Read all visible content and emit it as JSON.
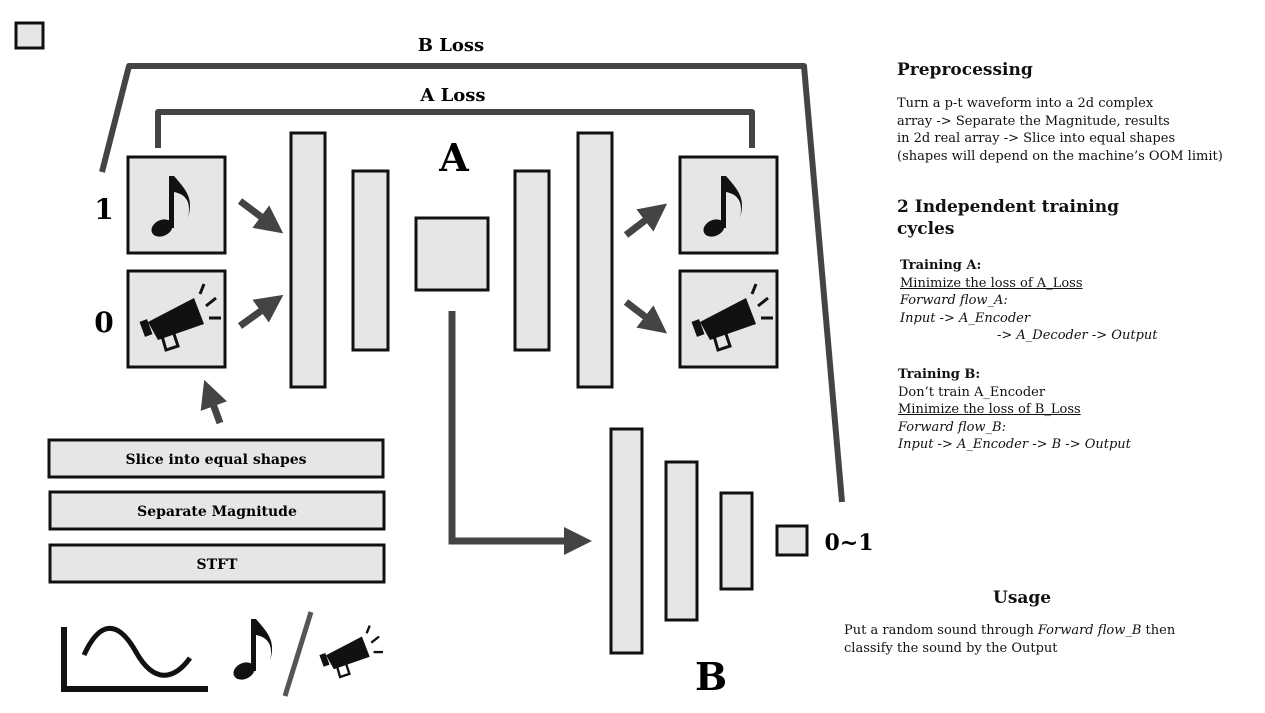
{
  "diagram": {
    "label_b_loss": "B Loss",
    "label_a_loss": "A Loss",
    "label_a": "A",
    "label_b": "B",
    "label_one": "1",
    "label_zero": "0",
    "label_output_range": "0~1",
    "step_slice": "Slice into equal shapes",
    "step_separate": "Separate Magnitude",
    "step_stft": "STFT",
    "icons": [
      "music-note-icon",
      "megaphone-icon",
      "waveform-icon"
    ]
  },
  "preprocessing": {
    "heading": "Preprocessing",
    "lines": [
      "Turn a p-t waveform into a 2d complex",
      "array -> Separate the Magnitude, results",
      "in 2d real array -> Slice into equal shapes",
      "(shapes will depend on the machine’s OOM limit)"
    ]
  },
  "training": {
    "heading_line1": "2 Independent training",
    "heading_line2": "cycles",
    "a": {
      "title": "Training A:",
      "goal": "Minimize the loss of A_Loss",
      "flow_label": "Forward flow_A:",
      "flow_line1": "Input -> A_Encoder",
      "flow_line2": "-> A_Decoder -> Output"
    },
    "b": {
      "title": "Training B:",
      "note": "Don’t train A_Encoder",
      "goal": "Minimize the loss of B_Loss",
      "flow_label": "Forward flow_B:",
      "flow_line": "Input -> A_Encoder -> B -> Output"
    }
  },
  "usage": {
    "heading": "Usage",
    "line1_pre": "Put a random sound through ",
    "line1_em": "Forward flow_B",
    "line1_post": " then",
    "line2": "classify the sound by the Output"
  }
}
